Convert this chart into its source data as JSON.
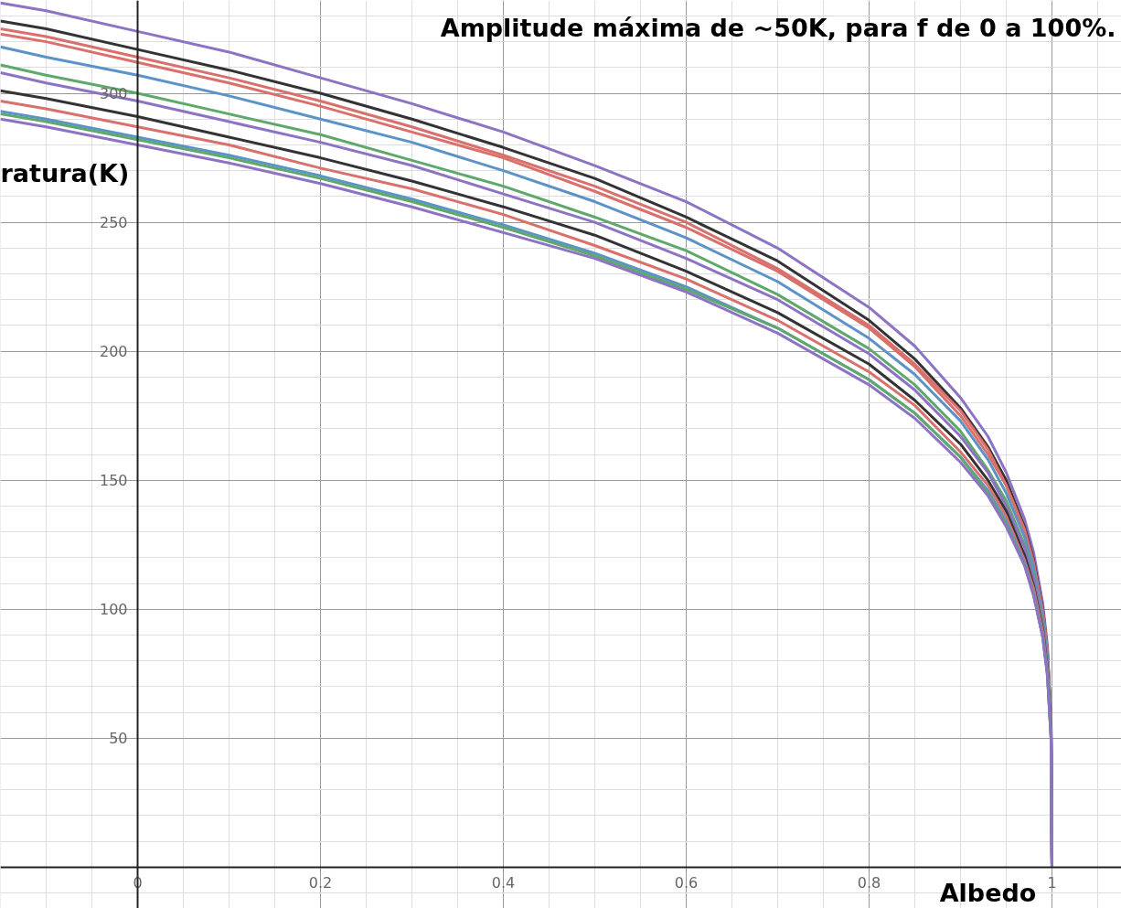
{
  "chart_data": {
    "type": "line",
    "title": "Amplitude máxima de ~50K, para f de 0 a 100%.",
    "xlabel": "Albedo",
    "ylabel": "ratura(K)",
    "x": [
      -0.15,
      -0.1,
      0,
      0.1,
      0.2,
      0.3,
      0.4,
      0.5,
      0.6,
      0.7,
      0.8,
      0.85,
      0.9,
      0.93,
      0.95,
      0.97,
      0.98,
      0.99,
      0.995,
      0.999,
      1.0
    ],
    "series": [
      {
        "color": "#8c73c4",
        "values": [
          335,
          332,
          324,
          316,
          306,
          296,
          285,
          272,
          258,
          240,
          217,
          202,
          182,
          167,
          153,
          135,
          122,
          102,
          86,
          58,
          0
        ]
      },
      {
        "color": "#333333",
        "values": [
          328,
          325,
          317,
          309,
          300,
          290,
          279,
          267,
          252,
          235,
          212,
          197,
          178,
          163,
          150,
          132,
          119,
          100,
          84,
          56,
          0
        ]
      },
      {
        "color": "#d9706c",
        "values": [
          325,
          322,
          314,
          306,
          297,
          287,
          276,
          264,
          250,
          232,
          210,
          195,
          177,
          162,
          148,
          131,
          118,
          99,
          84,
          56,
          0
        ]
      },
      {
        "color": "#d9706c",
        "values": [
          323,
          320,
          312,
          304,
          295,
          285,
          275,
          262,
          248,
          231,
          209,
          194,
          175,
          160,
          148,
          130,
          117,
          99,
          83,
          55,
          0
        ]
      },
      {
        "color": "#5b93c8",
        "values": [
          318,
          314,
          307,
          299,
          290,
          281,
          270,
          258,
          244,
          227,
          205,
          191,
          173,
          158,
          145,
          128,
          116,
          97,
          82,
          55,
          0
        ]
      },
      {
        "color": "#5fa86b",
        "values": [
          311,
          307,
          300,
          292,
          284,
          274,
          264,
          252,
          239,
          222,
          201,
          187,
          169,
          154,
          142,
          125,
          113,
          95,
          80,
          53,
          0
        ]
      },
      {
        "color": "#8c73c4",
        "values": [
          308,
          304,
          297,
          289,
          281,
          272,
          261,
          250,
          236,
          220,
          199,
          185,
          167,
          153,
          140,
          124,
          112,
          94,
          79,
          53,
          0
        ]
      },
      {
        "color": "#333333",
        "values": [
          301,
          298,
          291,
          283,
          275,
          266,
          256,
          245,
          231,
          215,
          195,
          181,
          164,
          150,
          138,
          121,
          109,
          92,
          77,
          52,
          0
        ]
      },
      {
        "color": "#d9706c",
        "values": [
          297,
          294,
          287,
          280,
          271,
          263,
          253,
          241,
          228,
          212,
          192,
          179,
          161,
          148,
          136,
          119,
          108,
          91,
          76,
          51,
          0
        ]
      },
      {
        "color": "#5b93c8",
        "values": [
          293,
          290,
          283,
          276,
          268,
          259,
          249,
          238,
          225,
          209,
          189,
          176,
          159,
          146,
          134,
          118,
          106,
          89,
          75,
          50,
          0
        ]
      },
      {
        "color": "#5fa86b",
        "values": [
          292,
          289,
          282,
          275,
          267,
          258,
          248,
          237,
          224,
          209,
          189,
          176,
          159,
          145,
          133,
          117,
          106,
          89,
          75,
          50,
          0
        ]
      },
      {
        "color": "#8c73c4",
        "values": [
          290,
          287,
          280,
          273,
          265,
          256,
          246,
          236,
          223,
          207,
          187,
          174,
          157,
          144,
          132,
          117,
          105,
          89,
          74,
          50,
          0
        ]
      }
    ],
    "xlim": [
      -0.15,
      1.076
    ],
    "ylim": [
      -16,
      336
    ],
    "xticks": [
      0,
      0.2,
      0.4,
      0.6,
      0.8,
      1
    ],
    "yticks": [
      50,
      100,
      150,
      200,
      250,
      300
    ],
    "grid": true,
    "line_style": "solid"
  }
}
